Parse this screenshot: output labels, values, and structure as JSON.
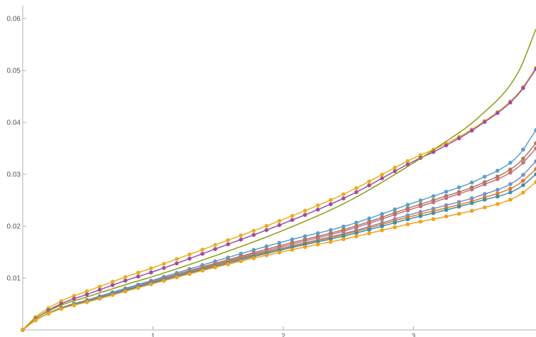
{
  "chart_data": {
    "type": "line",
    "xlim": [
      0,
      3.94
    ],
    "ylim": [
      0,
      0.0625
    ],
    "x_ticks": [
      {
        "value": 1,
        "label": "1"
      },
      {
        "value": 2,
        "label": "2"
      },
      {
        "value": 3,
        "label": "3"
      }
    ],
    "y_ticks": [
      {
        "value": 0.01,
        "label": "0.01"
      },
      {
        "value": 0.02,
        "label": "0.02"
      },
      {
        "value": 0.03,
        "label": "0.03"
      },
      {
        "value": 0.04,
        "label": "0.04"
      },
      {
        "value": 0.05,
        "label": "0.05"
      },
      {
        "value": 0.06,
        "label": "0.06"
      }
    ],
    "grid": false,
    "legend": "none",
    "series": [
      {
        "color": "#E8B01F",
        "markers": true,
        "x": [
          0,
          0.1,
          0.3,
          0.5,
          0.8,
          1.0,
          1.5,
          2.0,
          2.5,
          3.0,
          3.2,
          3.5,
          3.8,
          3.94
        ],
        "y": [
          0,
          0.0025,
          0.0056,
          0.0075,
          0.0103,
          0.012,
          0.0166,
          0.0213,
          0.0266,
          0.0331,
          0.0353,
          0.0395,
          0.0455,
          0.0505
        ]
      },
      {
        "color": "#9E4E9F",
        "markers": true,
        "x": [
          0,
          0.1,
          0.3,
          0.5,
          0.8,
          1.0,
          1.5,
          2.0,
          2.5,
          3.0,
          3.2,
          3.5,
          3.8,
          3.94
        ],
        "y": [
          0,
          0.0022,
          0.0051,
          0.0069,
          0.0096,
          0.0112,
          0.0158,
          0.0205,
          0.0258,
          0.0325,
          0.0349,
          0.0393,
          0.0453,
          0.0503
        ]
      },
      {
        "color": "#8E9A12",
        "markers": false,
        "x": [
          0,
          0.1,
          0.3,
          0.5,
          0.8,
          1.0,
          1.5,
          2.0,
          2.5,
          3.0,
          3.2,
          3.5,
          3.8,
          3.94
        ],
        "y": [
          0,
          0.0022,
          0.0048,
          0.0064,
          0.0088,
          0.0103,
          0.0145,
          0.0192,
          0.0248,
          0.0322,
          0.0355,
          0.041,
          0.0495,
          0.058
        ]
      },
      {
        "color": "#5D9FCB",
        "markers": true,
        "x": [
          0,
          0.1,
          0.3,
          0.5,
          0.8,
          1.0,
          1.5,
          2.0,
          2.5,
          3.0,
          3.2,
          3.5,
          3.8,
          3.94
        ],
        "y": [
          0,
          0.0019,
          0.0043,
          0.0058,
          0.0081,
          0.0096,
          0.0134,
          0.017,
          0.0202,
          0.0245,
          0.0262,
          0.029,
          0.0335,
          0.0385
        ]
      },
      {
        "color": "#A97C5C",
        "markers": true,
        "x": [
          0,
          0.1,
          0.3,
          0.5,
          0.8,
          1.0,
          1.5,
          2.0,
          2.5,
          3.0,
          3.2,
          3.5,
          3.8,
          3.94
        ],
        "y": [
          0,
          0.0019,
          0.0043,
          0.0057,
          0.0079,
          0.0094,
          0.013,
          0.0164,
          0.0196,
          0.0238,
          0.0254,
          0.028,
          0.032,
          0.036
        ]
      },
      {
        "color": "#C56F7A",
        "markers": true,
        "x": [
          0,
          0.1,
          0.3,
          0.5,
          0.8,
          1.0,
          1.5,
          2.0,
          2.5,
          3.0,
          3.2,
          3.5,
          3.8,
          3.94
        ],
        "y": [
          0,
          0.0019,
          0.0042,
          0.0056,
          0.0078,
          0.0093,
          0.0128,
          0.0161,
          0.0193,
          0.0234,
          0.025,
          0.0276,
          0.0313,
          0.035
        ]
      },
      {
        "color": "#7A8FC8",
        "markers": true,
        "x": [
          0,
          0.1,
          0.3,
          0.5,
          0.8,
          1.0,
          1.5,
          2.0,
          2.5,
          3.0,
          3.2,
          3.5,
          3.8,
          3.94
        ],
        "y": [
          0,
          0.0019,
          0.0042,
          0.0056,
          0.0078,
          0.0092,
          0.0127,
          0.0158,
          0.0188,
          0.0224,
          0.0237,
          0.0258,
          0.029,
          0.0325
        ]
      },
      {
        "color": "#E07B27",
        "markers": true,
        "x": [
          0,
          0.1,
          0.3,
          0.5,
          0.8,
          1.0,
          1.5,
          2.0,
          2.5,
          3.0,
          3.2,
          3.5,
          3.8,
          3.94
        ],
        "y": [
          0,
          0.0019,
          0.0042,
          0.0055,
          0.0077,
          0.0091,
          0.0126,
          0.0157,
          0.0186,
          0.022,
          0.0232,
          0.0252,
          0.028,
          0.031
        ]
      },
      {
        "color": "#3E8FA8",
        "markers": true,
        "x": [
          0,
          0.1,
          0.3,
          0.5,
          0.8,
          1.0,
          1.5,
          2.0,
          2.5,
          3.0,
          3.2,
          3.5,
          3.8,
          3.94
        ],
        "y": [
          0,
          0.0019,
          0.0042,
          0.0055,
          0.0077,
          0.0091,
          0.0124,
          0.0155,
          0.0183,
          0.0216,
          0.0228,
          0.0248,
          0.0272,
          0.03
        ]
      },
      {
        "color": "#F0A21D",
        "markers": true,
        "x": [
          0,
          0.1,
          0.3,
          0.5,
          0.8,
          1.0,
          1.5,
          2.0,
          2.5,
          3.0,
          3.2,
          3.5,
          3.8,
          3.94
        ],
        "y": [
          0,
          0.0019,
          0.0041,
          0.0054,
          0.0075,
          0.0089,
          0.0122,
          0.0151,
          0.0177,
          0.0206,
          0.0216,
          0.0233,
          0.0258,
          0.0285
        ]
      }
    ]
  }
}
